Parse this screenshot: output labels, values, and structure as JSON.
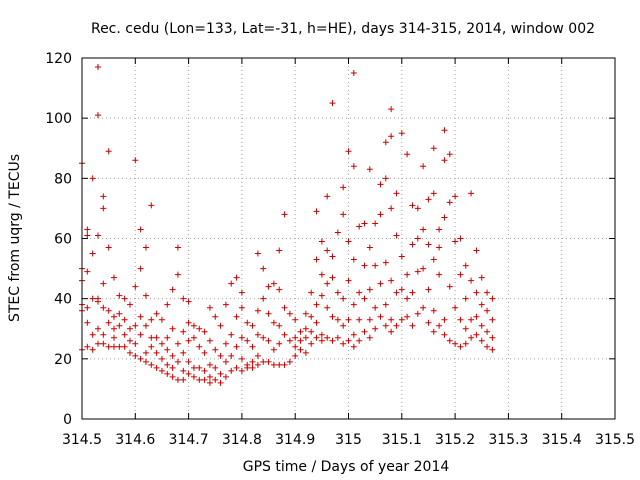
{
  "chart_data": {
    "type": "scatter",
    "title": "Rec. cedu (Lon=133, Lat=-31, h=HE), days 314-315, 2014, window 002",
    "xlabel": "GPS time / Days of year 2014",
    "ylabel": "STEC from uqrg / TECUs",
    "xlim": [
      314.5,
      315.5
    ],
    "ylim": [
      0,
      120
    ],
    "xticks": [
      "314.5",
      "314.6",
      "314.7",
      "314.8",
      "314.9",
      "315",
      "315.1",
      "315.2",
      "315.3",
      "315.4",
      "315.5"
    ],
    "yticks": [
      "0",
      "20",
      "40",
      "60",
      "80",
      "100",
      "120"
    ],
    "grid": true,
    "marker": "+",
    "color": "#cc0000",
    "points": [
      [
        314.5,
        85
      ],
      [
        314.5,
        46
      ],
      [
        314.5,
        50
      ],
      [
        314.5,
        38
      ],
      [
        314.5,
        36
      ],
      [
        314.5,
        23
      ],
      [
        314.51,
        63
      ],
      [
        314.51,
        61
      ],
      [
        314.51,
        49
      ],
      [
        314.51,
        37
      ],
      [
        314.51,
        32
      ],
      [
        314.51,
        24
      ],
      [
        314.52,
        80
      ],
      [
        314.52,
        55
      ],
      [
        314.52,
        40
      ],
      [
        314.52,
        28
      ],
      [
        314.52,
        23
      ],
      [
        314.53,
        117
      ],
      [
        314.53,
        101
      ],
      [
        314.53,
        61
      ],
      [
        314.53,
        40
      ],
      [
        314.53,
        39
      ],
      [
        314.53,
        30
      ],
      [
        314.53,
        25
      ],
      [
        314.54,
        74
      ],
      [
        314.54,
        70
      ],
      [
        314.54,
        45
      ],
      [
        314.54,
        37
      ],
      [
        314.54,
        28
      ],
      [
        314.54,
        25
      ],
      [
        314.55,
        89
      ],
      [
        314.55,
        57
      ],
      [
        314.55,
        36
      ],
      [
        314.55,
        32
      ],
      [
        314.55,
        24
      ],
      [
        314.56,
        47
      ],
      [
        314.56,
        34
      ],
      [
        314.56,
        30
      ],
      [
        314.56,
        27
      ],
      [
        314.56,
        24
      ],
      [
        314.57,
        41
      ],
      [
        314.57,
        35
      ],
      [
        314.57,
        31
      ],
      [
        314.57,
        24
      ],
      [
        314.58,
        40
      ],
      [
        314.58,
        33
      ],
      [
        314.58,
        28
      ],
      [
        314.58,
        24
      ],
      [
        314.59,
        38
      ],
      [
        314.59,
        30
      ],
      [
        314.59,
        26
      ],
      [
        314.59,
        22
      ],
      [
        314.6,
        86
      ],
      [
        314.6,
        44
      ],
      [
        314.6,
        31
      ],
      [
        314.6,
        25
      ],
      [
        314.6,
        21
      ],
      [
        314.61,
        63
      ],
      [
        314.61,
        50
      ],
      [
        314.61,
        34
      ],
      [
        314.61,
        28
      ],
      [
        314.61,
        20
      ],
      [
        314.62,
        57
      ],
      [
        314.62,
        41
      ],
      [
        314.62,
        31
      ],
      [
        314.62,
        22
      ],
      [
        314.62,
        19
      ],
      [
        314.63,
        71
      ],
      [
        314.63,
        33
      ],
      [
        314.63,
        27
      ],
      [
        314.63,
        24
      ],
      [
        314.63,
        18
      ],
      [
        314.64,
        35
      ],
      [
        314.64,
        27
      ],
      [
        314.64,
        22
      ],
      [
        314.64,
        17
      ],
      [
        314.65,
        33
      ],
      [
        314.65,
        25
      ],
      [
        314.65,
        20
      ],
      [
        314.65,
        16
      ],
      [
        314.66,
        38
      ],
      [
        314.66,
        27
      ],
      [
        314.66,
        23
      ],
      [
        314.66,
        18
      ],
      [
        314.66,
        15
      ],
      [
        314.67,
        43
      ],
      [
        314.67,
        30
      ],
      [
        314.67,
        21
      ],
      [
        314.67,
        17
      ],
      [
        314.67,
        14
      ],
      [
        314.68,
        57
      ],
      [
        314.68,
        48
      ],
      [
        314.68,
        25
      ],
      [
        314.68,
        19
      ],
      [
        314.68,
        13
      ],
      [
        314.69,
        40
      ],
      [
        314.69,
        29
      ],
      [
        314.69,
        22
      ],
      [
        314.69,
        16
      ],
      [
        314.69,
        13
      ],
      [
        314.7,
        39
      ],
      [
        314.7,
        32
      ],
      [
        314.7,
        26
      ],
      [
        314.7,
        19
      ],
      [
        314.7,
        15
      ],
      [
        314.71,
        31
      ],
      [
        314.71,
        27
      ],
      [
        314.71,
        17
      ],
      [
        314.71,
        14
      ],
      [
        314.72,
        30
      ],
      [
        314.72,
        24
      ],
      [
        314.72,
        17
      ],
      [
        314.72,
        13
      ],
      [
        314.73,
        29
      ],
      [
        314.73,
        22
      ],
      [
        314.73,
        16
      ],
      [
        314.73,
        13
      ],
      [
        314.74,
        37
      ],
      [
        314.74,
        26
      ],
      [
        314.74,
        18
      ],
      [
        314.74,
        14
      ],
      [
        314.74,
        12
      ],
      [
        314.75,
        34
      ],
      [
        314.75,
        23
      ],
      [
        314.75,
        17
      ],
      [
        314.75,
        13
      ],
      [
        314.76,
        31
      ],
      [
        314.76,
        21
      ],
      [
        314.76,
        15
      ],
      [
        314.76,
        12
      ],
      [
        314.77,
        38
      ],
      [
        314.77,
        25
      ],
      [
        314.77,
        19
      ],
      [
        314.77,
        14
      ],
      [
        314.78,
        45
      ],
      [
        314.78,
        28
      ],
      [
        314.78,
        21
      ],
      [
        314.78,
        16
      ],
      [
        314.79,
        47
      ],
      [
        314.79,
        34
      ],
      [
        314.79,
        24
      ],
      [
        314.79,
        17
      ],
      [
        314.8,
        42
      ],
      [
        314.8,
        37
      ],
      [
        314.8,
        27
      ],
      [
        314.8,
        20
      ],
      [
        314.8,
        16
      ],
      [
        314.81,
        32
      ],
      [
        314.81,
        26
      ],
      [
        314.81,
        18
      ],
      [
        314.81,
        17
      ],
      [
        314.82,
        31
      ],
      [
        314.82,
        24
      ],
      [
        314.82,
        19
      ],
      [
        314.82,
        17
      ],
      [
        314.83,
        55
      ],
      [
        314.83,
        36
      ],
      [
        314.83,
        28
      ],
      [
        314.83,
        21
      ],
      [
        314.83,
        18
      ],
      [
        314.84,
        50
      ],
      [
        314.84,
        40
      ],
      [
        314.84,
        27
      ],
      [
        314.84,
        19
      ],
      [
        314.85,
        44
      ],
      [
        314.85,
        35
      ],
      [
        314.85,
        26
      ],
      [
        314.85,
        19
      ],
      [
        314.86,
        45
      ],
      [
        314.86,
        32
      ],
      [
        314.86,
        23
      ],
      [
        314.86,
        18
      ],
      [
        314.87,
        56
      ],
      [
        314.87,
        43
      ],
      [
        314.87,
        31
      ],
      [
        314.87,
        25
      ],
      [
        314.87,
        18
      ],
      [
        314.88,
        68
      ],
      [
        314.88,
        37
      ],
      [
        314.88,
        28
      ],
      [
        314.88,
        18
      ],
      [
        314.89,
        35
      ],
      [
        314.89,
        26
      ],
      [
        314.89,
        19
      ],
      [
        314.9,
        33
      ],
      [
        314.9,
        27
      ],
      [
        314.9,
        24
      ],
      [
        314.9,
        21
      ],
      [
        314.91,
        29
      ],
      [
        314.91,
        26
      ],
      [
        314.91,
        23
      ],
      [
        314.92,
        35
      ],
      [
        314.92,
        30
      ],
      [
        314.92,
        27
      ],
      [
        314.92,
        22
      ],
      [
        314.93,
        42
      ],
      [
        314.93,
        34
      ],
      [
        314.93,
        29
      ],
      [
        314.93,
        25
      ],
      [
        314.94,
        69
      ],
      [
        314.94,
        53
      ],
      [
        314.94,
        38
      ],
      [
        314.94,
        32
      ],
      [
        314.94,
        27
      ],
      [
        314.95,
        59
      ],
      [
        314.95,
        48
      ],
      [
        314.95,
        41
      ],
      [
        314.95,
        28
      ],
      [
        314.95,
        26
      ],
      [
        314.96,
        74
      ],
      [
        314.96,
        56
      ],
      [
        314.96,
        45
      ],
      [
        314.96,
        37
      ],
      [
        314.96,
        27
      ],
      [
        314.97,
        105
      ],
      [
        314.97,
        54
      ],
      [
        314.97,
        47
      ],
      [
        314.97,
        34
      ],
      [
        314.97,
        26
      ],
      [
        314.98,
        62
      ],
      [
        314.98,
        42
      ],
      [
        314.98,
        33
      ],
      [
        314.98,
        27
      ],
      [
        314.99,
        77
      ],
      [
        314.99,
        68
      ],
      [
        314.99,
        40
      ],
      [
        314.99,
        31
      ],
      [
        314.99,
        25
      ],
      [
        315.0,
        89
      ],
      [
        315.0,
        59
      ],
      [
        315.0,
        46
      ],
      [
        315.0,
        33
      ],
      [
        315.0,
        26
      ],
      [
        315.01,
        115
      ],
      [
        315.01,
        84
      ],
      [
        315.01,
        53
      ],
      [
        315.01,
        38
      ],
      [
        315.01,
        28
      ],
      [
        315.01,
        24
      ],
      [
        315.02,
        64
      ],
      [
        315.02,
        42
      ],
      [
        315.02,
        33
      ],
      [
        315.02,
        26
      ],
      [
        315.03,
        65
      ],
      [
        315.03,
        51
      ],
      [
        315.03,
        40
      ],
      [
        315.03,
        29
      ],
      [
        315.04,
        83
      ],
      [
        315.04,
        57
      ],
      [
        315.04,
        43
      ],
      [
        315.04,
        33
      ],
      [
        315.04,
        27
      ],
      [
        315.05,
        65
      ],
      [
        315.05,
        51
      ],
      [
        315.05,
        37
      ],
      [
        315.05,
        30
      ],
      [
        315.06,
        78
      ],
      [
        315.06,
        68
      ],
      [
        315.06,
        45
      ],
      [
        315.06,
        34
      ],
      [
        315.07,
        92
      ],
      [
        315.07,
        80
      ],
      [
        315.07,
        52
      ],
      [
        315.07,
        38
      ],
      [
        315.07,
        31
      ],
      [
        315.08,
        103
      ],
      [
        315.08,
        94
      ],
      [
        315.08,
        70
      ],
      [
        315.08,
        46
      ],
      [
        315.08,
        33
      ],
      [
        315.08,
        29
      ],
      [
        315.09,
        75
      ],
      [
        315.09,
        61
      ],
      [
        315.09,
        42
      ],
      [
        315.09,
        31
      ],
      [
        315.1,
        95
      ],
      [
        315.1,
        54
      ],
      [
        315.1,
        43
      ],
      [
        315.1,
        33
      ],
      [
        315.11,
        88
      ],
      [
        315.11,
        48
      ],
      [
        315.11,
        40
      ],
      [
        315.11,
        34
      ],
      [
        315.12,
        71
      ],
      [
        315.12,
        58
      ],
      [
        315.12,
        42
      ],
      [
        315.12,
        31
      ],
      [
        315.13,
        70
      ],
      [
        315.13,
        60
      ],
      [
        315.13,
        49
      ],
      [
        315.13,
        35
      ],
      [
        315.14,
        84
      ],
      [
        315.14,
        63
      ],
      [
        315.14,
        50
      ],
      [
        315.14,
        37
      ],
      [
        315.15,
        73
      ],
      [
        315.15,
        58
      ],
      [
        315.15,
        43
      ],
      [
        315.15,
        32
      ],
      [
        315.16,
        90
      ],
      [
        315.16,
        75
      ],
      [
        315.16,
        53
      ],
      [
        315.16,
        36
      ],
      [
        315.16,
        29
      ],
      [
        315.17,
        63
      ],
      [
        315.17,
        57
      ],
      [
        315.17,
        48
      ],
      [
        315.17,
        31
      ],
      [
        315.18,
        96
      ],
      [
        315.18,
        86
      ],
      [
        315.18,
        67
      ],
      [
        315.18,
        33
      ],
      [
        315.18,
        28
      ],
      [
        315.19,
        88
      ],
      [
        315.19,
        72
      ],
      [
        315.19,
        44
      ],
      [
        315.19,
        26
      ],
      [
        315.2,
        74
      ],
      [
        315.2,
        59
      ],
      [
        315.2,
        37
      ],
      [
        315.2,
        25
      ],
      [
        315.21,
        60
      ],
      [
        315.21,
        48
      ],
      [
        315.21,
        33
      ],
      [
        315.21,
        24
      ],
      [
        315.22,
        51
      ],
      [
        315.22,
        40
      ],
      [
        315.22,
        30
      ],
      [
        315.22,
        25
      ],
      [
        315.23,
        75
      ],
      [
        315.23,
        46
      ],
      [
        315.23,
        33
      ],
      [
        315.23,
        27
      ],
      [
        315.24,
        56
      ],
      [
        315.24,
        42
      ],
      [
        315.24,
        34
      ],
      [
        315.24,
        28
      ],
      [
        315.25,
        47
      ],
      [
        315.25,
        38
      ],
      [
        315.25,
        31
      ],
      [
        315.25,
        26
      ],
      [
        315.26,
        42
      ],
      [
        315.26,
        36
      ],
      [
        315.26,
        29
      ],
      [
        315.26,
        24
      ],
      [
        315.27,
        40
      ],
      [
        315.27,
        33
      ],
      [
        315.27,
        27
      ],
      [
        315.27,
        23
      ]
    ]
  }
}
